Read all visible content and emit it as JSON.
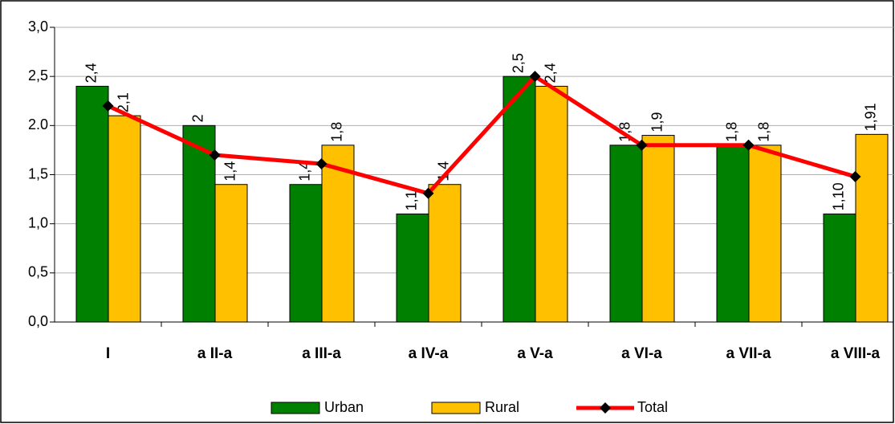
{
  "chart_data": {
    "type": "bar-line",
    "categories": [
      "I",
      "a II-a",
      "a III-a",
      "a IV-a",
      "a V-a",
      "a VI-a",
      "a VII-a",
      "a VIII-a"
    ],
    "series": [
      {
        "name": "Urban",
        "type": "bar",
        "color": "#008000",
        "values": [
          2.4,
          2,
          1.4,
          1.1,
          2.5,
          1.8,
          1.8,
          1.1
        ],
        "value_labels": [
          "2,4",
          "2",
          "1,4",
          "1,1",
          "2,5",
          "1,8",
          "1,8",
          "1,10"
        ]
      },
      {
        "name": "Rural",
        "type": "bar",
        "color": "#ffc000",
        "values": [
          2.1,
          1.4,
          1.8,
          1.4,
          2.4,
          1.9,
          1.8,
          1.91
        ],
        "value_labels": [
          "2,1",
          "1,4",
          "1,8",
          "1,4",
          "2,4",
          "1,9",
          "1,8",
          "1,91"
        ]
      },
      {
        "name": "Total",
        "type": "line",
        "color": "#ff0000",
        "values": [
          2.2,
          1.7,
          1.61,
          1.31,
          2.5,
          1.8,
          1.8,
          1.48
        ]
      }
    ],
    "ylim": [
      0,
      3
    ],
    "yticks": [
      {
        "value": 0,
        "label": "0,0"
      },
      {
        "value": 0.5,
        "label": "0,5"
      },
      {
        "value": 1,
        "label": "1,0"
      },
      {
        "value": 1.5,
        "label": "1,5"
      },
      {
        "value": 2,
        "label": "2.0"
      },
      {
        "value": 2.5,
        "label": "2,5"
      },
      {
        "value": 3,
        "label": "3,0"
      }
    ],
    "grid": true,
    "legend": "bottom"
  }
}
